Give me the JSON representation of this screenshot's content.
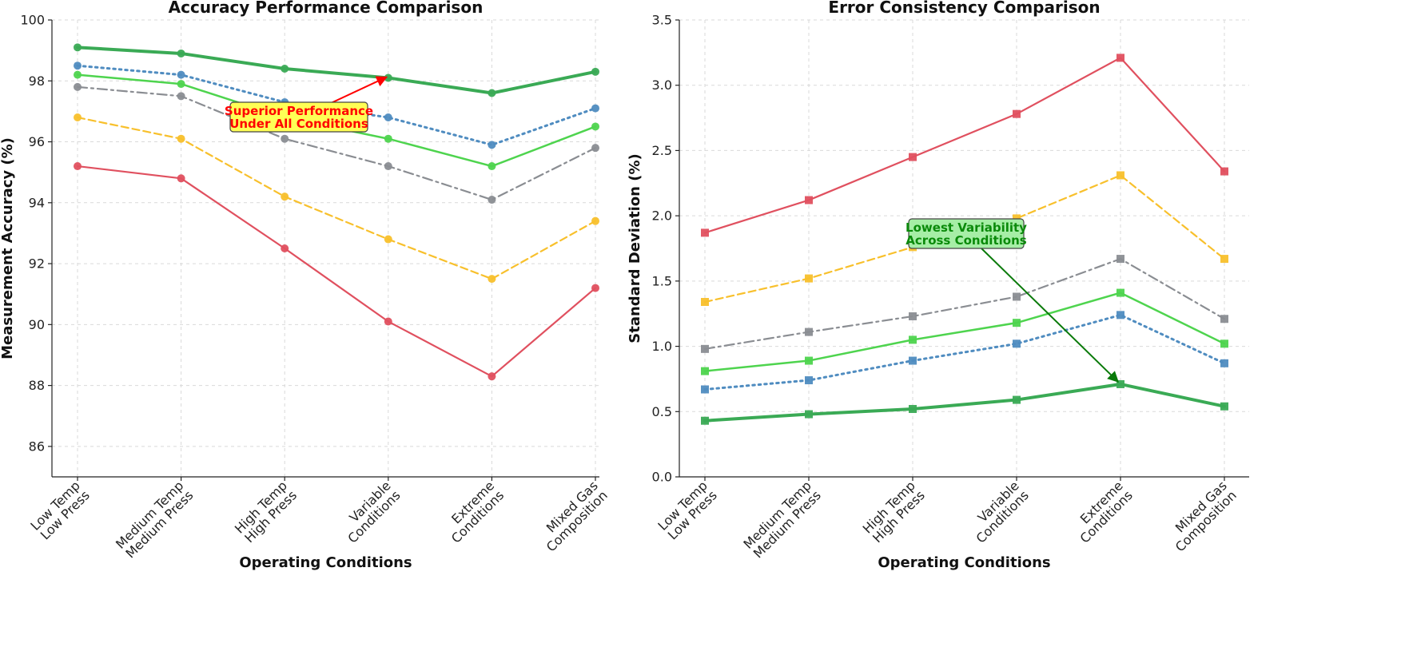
{
  "chart_data": [
    {
      "type": "line",
      "title": "Accuracy Performance Comparison",
      "xlabel": "Operating Conditions",
      "ylabel": "Measurement Accuracy (%)",
      "ylim": [
        85,
        100
      ],
      "yticks": [
        86,
        88,
        90,
        92,
        94,
        96,
        98,
        100
      ],
      "ytick_labels": [
        "86",
        "88",
        "90",
        "92",
        "94",
        "96",
        "98",
        "100"
      ],
      "categories": [
        [
          "Low Temp",
          "Low Press"
        ],
        [
          "Medium Temp",
          "Medium Press"
        ],
        [
          "High Temp",
          "High Press"
        ],
        [
          "Variable",
          "Conditions"
        ],
        [
          "Extreme",
          "Conditions"
        ],
        [
          "Mixed Gas",
          "Composition"
        ]
      ],
      "marker": "circle",
      "series": [
        {
          "values": [
            95.2,
            94.8,
            92.5,
            90.1,
            88.3,
            91.2
          ],
          "color": "#e0505f",
          "dash": "solid",
          "width": 2.2
        },
        {
          "values": [
            96.8,
            96.1,
            94.2,
            92.8,
            91.5,
            93.4
          ],
          "color": "#f8c02c",
          "dash": "dashed",
          "width": 2.2
        },
        {
          "values": [
            97.8,
            97.5,
            96.1,
            95.2,
            94.1,
            95.8
          ],
          "color": "#8a8d92",
          "dash": "dashdot",
          "width": 2.2
        },
        {
          "values": [
            98.5,
            98.2,
            97.3,
            96.8,
            95.9,
            97.1
          ],
          "color": "#4f8cc0",
          "dash": "dotted",
          "width": 3
        },
        {
          "values": [
            98.2,
            97.9,
            96.8,
            96.1,
            95.2,
            96.5
          ],
          "color": "#4ed44e",
          "dash": "solid",
          "width": 2.5
        },
        {
          "values": [
            99.1,
            98.9,
            98.4,
            98.1,
            97.6,
            98.3
          ],
          "color": "#3aaa55",
          "dash": "solid",
          "width": 4
        }
      ],
      "annotation": {
        "lines": [
          "Superior Performance",
          "Under All Conditions"
        ],
        "text_color": "#ff0000",
        "box_color": "#ffff55",
        "arrow_color": "#ff0000",
        "target": {
          "category_index": 3,
          "value": 98.1
        }
      }
    },
    {
      "type": "line",
      "title": "Error Consistency Comparison",
      "xlabel": "Operating Conditions",
      "ylabel": "Standard Deviation (%)",
      "ylim": [
        0,
        3.5
      ],
      "yticks": [
        0,
        0.5,
        1.0,
        1.5,
        2.0,
        2.5,
        3.0,
        3.5
      ],
      "ytick_labels": [
        "0.0",
        "0.5",
        "1.0",
        "1.5",
        "2.0",
        "2.5",
        "3.0",
        "3.5"
      ],
      "categories": [
        [
          "Low Temp",
          "Low Press"
        ],
        [
          "Medium Temp",
          "Medium Press"
        ],
        [
          "High Temp",
          "High Press"
        ],
        [
          "Variable",
          "Conditions"
        ],
        [
          "Extreme",
          "Conditions"
        ],
        [
          "Mixed Gas",
          "Composition"
        ]
      ],
      "marker": "square",
      "series": [
        {
          "values": [
            1.87,
            2.12,
            2.45,
            2.78,
            3.21,
            2.34
          ],
          "color": "#e0505f",
          "dash": "solid",
          "width": 2.2
        },
        {
          "values": [
            1.34,
            1.52,
            1.76,
            1.98,
            2.31,
            1.67
          ],
          "color": "#f8c02c",
          "dash": "dashed",
          "width": 2.2
        },
        {
          "values": [
            0.98,
            1.11,
            1.23,
            1.38,
            1.67,
            1.21
          ],
          "color": "#8a8d92",
          "dash": "dashdot",
          "width": 2.2
        },
        {
          "values": [
            0.67,
            0.74,
            0.89,
            1.02,
            1.24,
            0.87
          ],
          "color": "#4f8cc0",
          "dash": "dotted",
          "width": 3
        },
        {
          "values": [
            0.81,
            0.89,
            1.05,
            1.18,
            1.41,
            1.02
          ],
          "color": "#4ed44e",
          "dash": "solid",
          "width": 2.5
        },
        {
          "values": [
            0.43,
            0.48,
            0.52,
            0.59,
            0.71,
            0.54
          ],
          "color": "#3aaa55",
          "dash": "solid",
          "width": 4
        }
      ],
      "annotation": {
        "lines": [
          "Lowest Variability",
          "Across Conditions"
        ],
        "text_color": "#0a8a0a",
        "box_color": "#a6eea6",
        "arrow_color": "#0a7a0a",
        "target": {
          "category_index": 4,
          "value": 0.71
        }
      }
    }
  ]
}
